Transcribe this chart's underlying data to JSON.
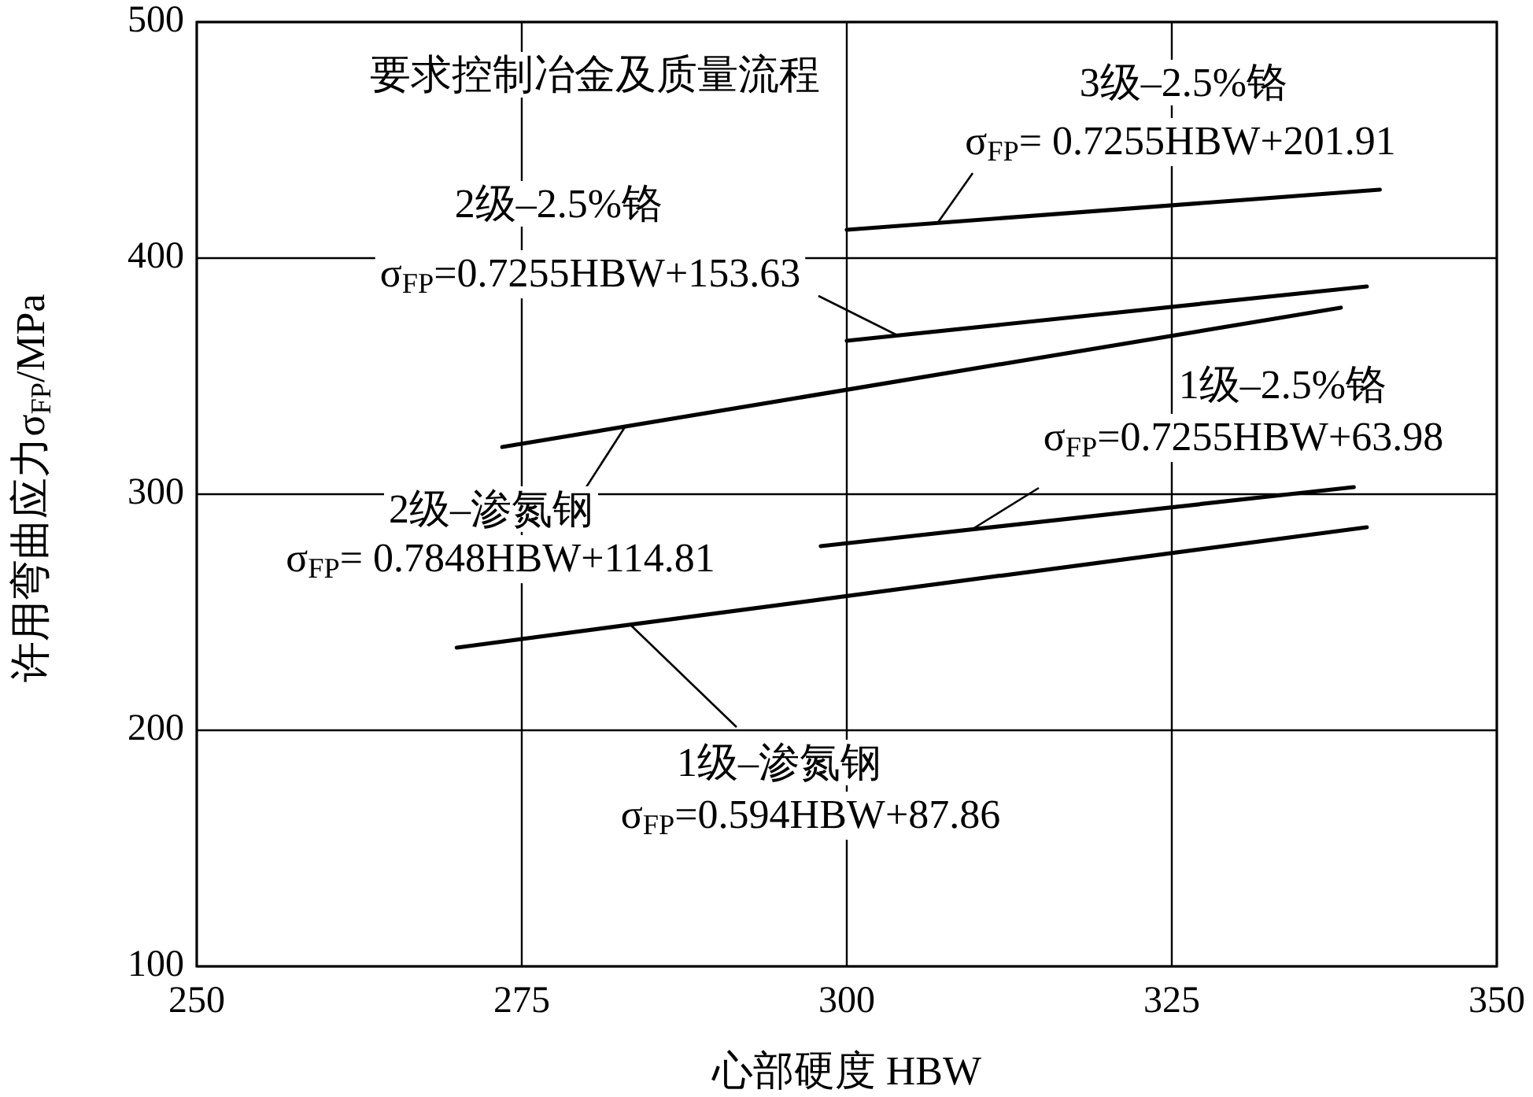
{
  "chart_data": {
    "type": "line",
    "xlabel": "心部硬度  HBW",
    "ylabel": "许用弯曲应力σ$_{FP}$/MPa",
    "xlim": [
      250,
      350
    ],
    "ylim": [
      100,
      500
    ],
    "xticks": [
      250,
      275,
      300,
      325,
      350
    ],
    "yticks": [
      100,
      200,
      300,
      400,
      500
    ],
    "grid": true,
    "marker": "none",
    "series": [
      {
        "color": "#000000",
        "x": [
          270,
          340
        ],
        "values": [
          235,
          286
        ]
      },
      {
        "color": "#000000",
        "x": [
          298,
          339
        ],
        "values": [
          278,
          303
        ]
      },
      {
        "color": "#000000",
        "x": [
          273.5,
          338
        ],
        "values": [
          320,
          379
        ]
      },
      {
        "color": "#000000",
        "x": [
          300,
          340
        ],
        "values": [
          365,
          388
        ]
      },
      {
        "color": "#000000",
        "x": [
          300,
          341
        ],
        "values": [
          412,
          429
        ]
      }
    ],
    "annotations": [
      "要求控制冶金及质量流程",
      {
        "text": "1级–渗氮钢",
        "x": 283.3,
        "y": 245
      },
      "σ$_{FP}$=0.594HBW+87.86",
      "1级–2.5%铬",
      {
        "text": "σ$_{FP}$=0.7255HBW+63.98",
        "x": 309.6,
        "y": 285
      },
      {
        "text": "2级–渗氮钢",
        "x": 283,
        "y": 329
      },
      "σ$_{FP}$= 0.7848HBW+114.81",
      "2级–2.5%铬",
      {
        "text": "σ$_{FP}$=0.7255HBW+153.63",
        "x": 304,
        "y": 367
      },
      "3级–2.5%铬",
      {
        "text": "σ$_{FP}$= 0.7255HBW+201.91",
        "x": 307,
        "y": 415
      }
    ]
  }
}
